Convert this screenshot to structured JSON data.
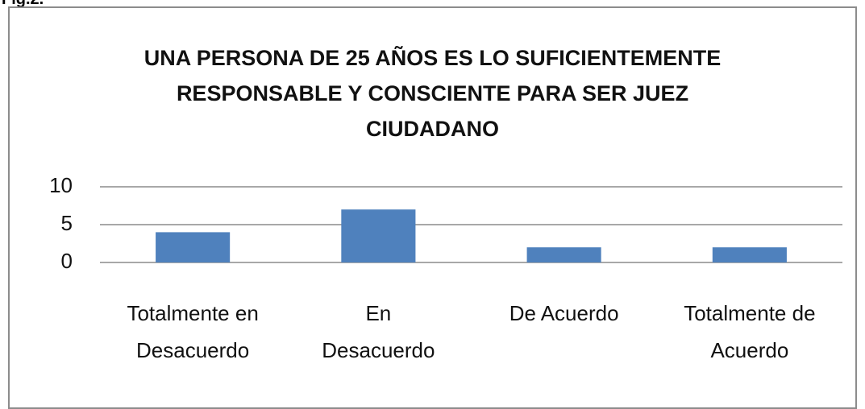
{
  "caption": "Fig.2.",
  "chart_data": {
    "type": "bar",
    "title": "UNA PERSONA DE 25 AÑOS ES LO SUFICIENTEMENTE\nRESPONSABLE Y CONSCIENTE PARA SER JUEZ\nCIUDADANO",
    "categories": [
      "Totalmente en\nDesacuerdo",
      "En\nDesacuerdo",
      "De Acuerdo",
      "Totalmente de\nAcuerdo"
    ],
    "values": [
      4,
      7,
      2,
      2
    ],
    "color": "#4f81bd",
    "ylim": [
      0,
      10
    ],
    "yticks": [
      0,
      5,
      10
    ],
    "grid": true
  }
}
